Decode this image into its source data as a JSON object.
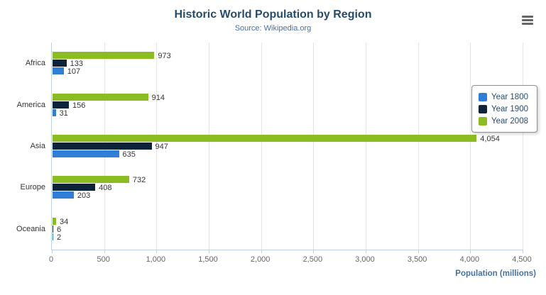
{
  "header": {
    "title": "Historic World Population by Region",
    "subtitle": "Source: Wikipedia.org"
  },
  "menu": {
    "icon": "hamburger-icon"
  },
  "chart_data": {
    "type": "bar",
    "orientation": "horizontal",
    "title": "Historic World Population by Region",
    "subtitle": "Source: Wikipedia.org",
    "categories": [
      "Africa",
      "America",
      "Asia",
      "Europe",
      "Oceania"
    ],
    "series": [
      {
        "name": "Year 1800",
        "color": "#2f7ed8",
        "values": [
          107,
          31,
          635,
          203,
          2
        ]
      },
      {
        "name": "Year 1900",
        "color": "#0d233a",
        "values": [
          133,
          156,
          947,
          408,
          6
        ]
      },
      {
        "name": "Year 2008",
        "color": "#8bbc21",
        "values": [
          973,
          914,
          4054,
          732,
          34
        ]
      }
    ],
    "xlabel": "Population (millions)",
    "ylabel": "",
    "xlim": [
      0,
      4500
    ],
    "xticks": [
      0,
      500,
      1000,
      1500,
      2000,
      2500,
      3000,
      3500,
      4000,
      4500
    ],
    "grid": true,
    "legend_position": "right",
    "colors": {
      "title": "#274b6d",
      "subtitle": "#4572A7",
      "axis_title": "#4572A7",
      "gridline": "#E6E6E6"
    }
  }
}
